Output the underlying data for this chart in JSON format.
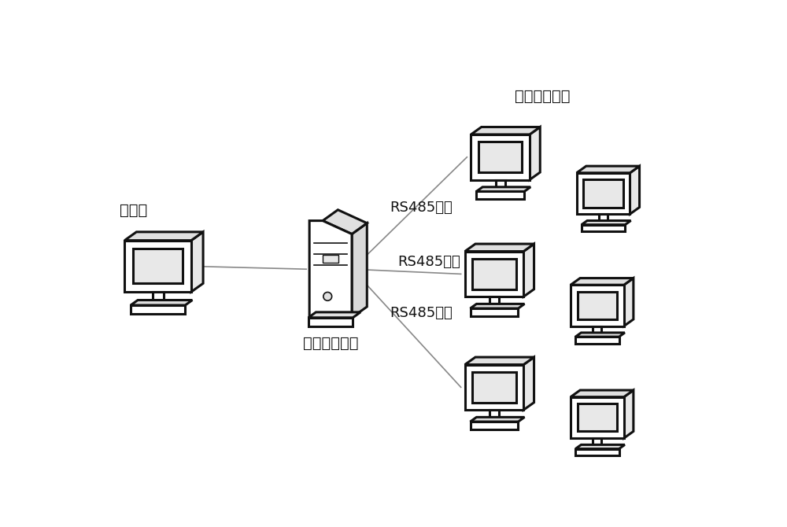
{
  "bg_color": "#ffffff",
  "line_color": "#888888",
  "monitor_fill": "#ffffff",
  "monitor_edge": "#111111",
  "server_fill": "#ffffff",
  "server_edge": "#111111",
  "label_host": "上位机",
  "label_converter": "接口转换系统",
  "label_remote": "远程测控终端",
  "label_bus1": "RS485总线",
  "label_bus2": "RS485总线",
  "label_bus3": "RS485总线",
  "fontsize_label": 14,
  "fontsize_bus": 13
}
